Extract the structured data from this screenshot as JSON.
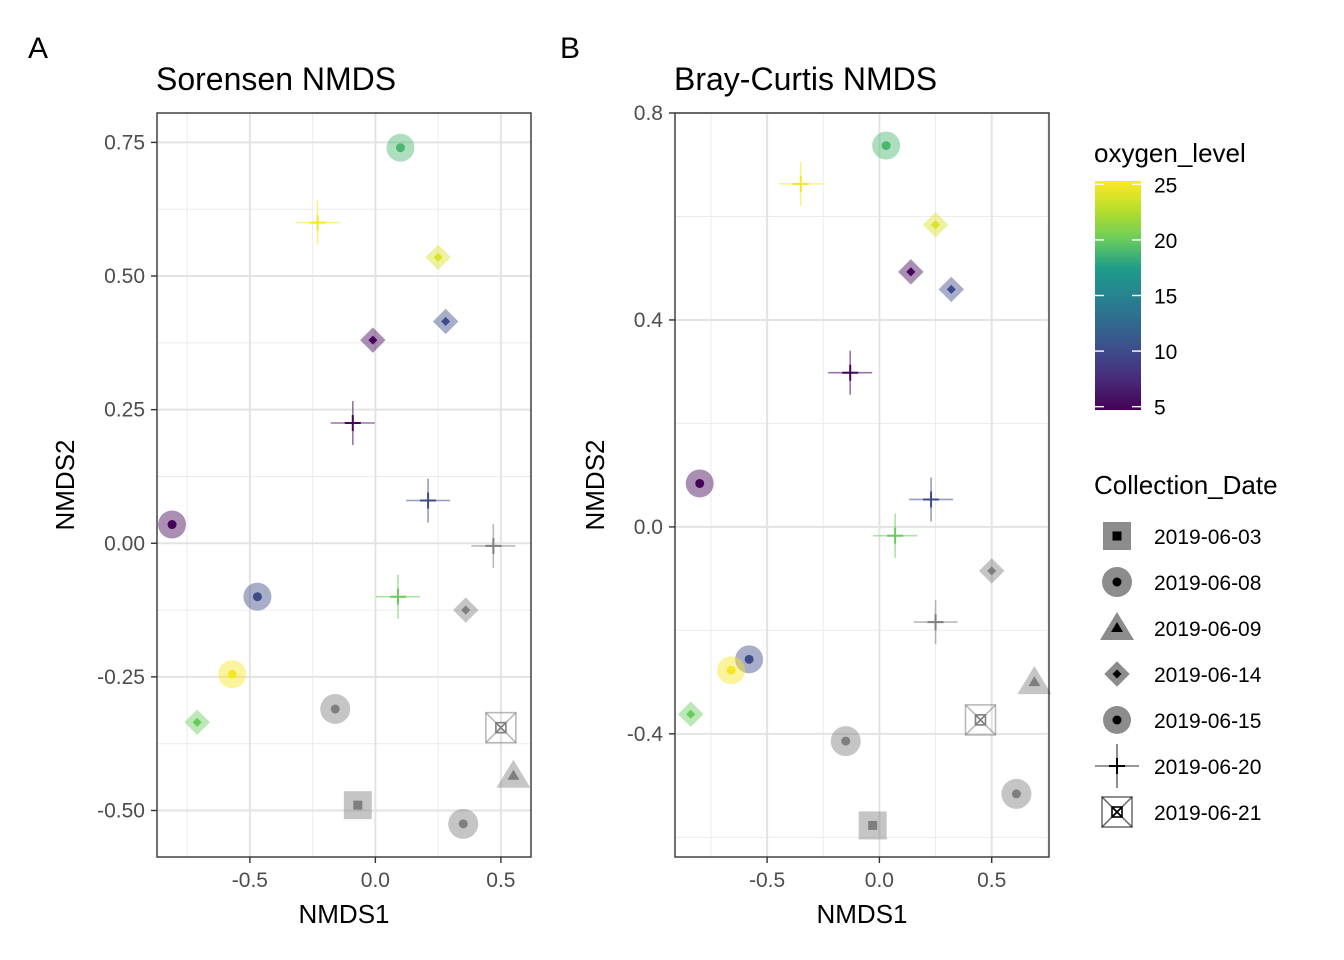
{
  "chart_data": [
    {
      "panel_tag": "A",
      "type": "scatter",
      "title": "Sorensen NMDS",
      "xlabel": "NMDS1",
      "ylabel": "NMDS2",
      "xlim": [
        -0.87,
        0.62
      ],
      "ylim": [
        -0.587,
        0.805
      ],
      "xticks": [
        -0.5,
        0.0,
        0.5
      ],
      "xtick_labels": [
        "-0.5",
        "0.0",
        "0.5"
      ],
      "yticks": [
        -0.5,
        -0.25,
        0.0,
        0.25,
        0.5,
        0.75
      ],
      "ytick_labels": [
        "-0.50",
        "-0.25",
        "0.00",
        "0.25",
        "0.50",
        "0.75"
      ],
      "grid": true,
      "points": [
        {
          "x": 0.1,
          "y": 0.74,
          "shape": "circle2",
          "oxygen": 19
        },
        {
          "x": -0.23,
          "y": 0.6,
          "shape": "plus",
          "oxygen": 25
        },
        {
          "x": 0.25,
          "y": 0.535,
          "shape": "diamond",
          "oxygen": 24
        },
        {
          "x": 0.28,
          "y": 0.415,
          "shape": "diamond",
          "oxygen": 10
        },
        {
          "x": -0.01,
          "y": 0.38,
          "shape": "diamond",
          "oxygen": 5
        },
        {
          "x": -0.09,
          "y": 0.225,
          "shape": "plus",
          "oxygen": 5
        },
        {
          "x": 0.21,
          "y": 0.08,
          "shape": "plus",
          "oxygen": 10
        },
        {
          "x": -0.81,
          "y": 0.035,
          "shape": "circle2",
          "oxygen": 5
        },
        {
          "x": 0.47,
          "y": -0.005,
          "shape": "plus",
          "oxygen": null
        },
        {
          "x": 0.09,
          "y": -0.1,
          "shape": "plus",
          "oxygen": 20
        },
        {
          "x": 0.36,
          "y": -0.125,
          "shape": "diamond",
          "oxygen": null
        },
        {
          "x": -0.47,
          "y": -0.1,
          "shape": "circle2",
          "oxygen": 10
        },
        {
          "x": -0.57,
          "y": -0.245,
          "shape": "circle2",
          "oxygen": 25
        },
        {
          "x": -0.71,
          "y": -0.335,
          "shape": "diamond",
          "oxygen": 20
        },
        {
          "x": -0.16,
          "y": -0.31,
          "shape": "circle",
          "oxygen": null
        },
        {
          "x": 0.5,
          "y": -0.345,
          "shape": "boxx",
          "oxygen": null
        },
        {
          "x": 0.55,
          "y": -0.435,
          "shape": "triangle",
          "oxygen": null
        },
        {
          "x": -0.07,
          "y": -0.49,
          "shape": "square",
          "oxygen": null
        },
        {
          "x": 0.35,
          "y": -0.525,
          "shape": "circle",
          "oxygen": null
        }
      ]
    },
    {
      "panel_tag": "B",
      "type": "scatter",
      "title": "Bray-Curtis NMDS",
      "xlabel": "NMDS1",
      "ylabel": "NMDS2",
      "xlim": [
        -0.91,
        0.755
      ],
      "ylim": [
        -0.638,
        0.8
      ],
      "xticks": [
        -0.5,
        0.0,
        0.5
      ],
      "xtick_labels": [
        "-0.5",
        "0.0",
        "0.5"
      ],
      "yticks": [
        -0.4,
        0.0,
        0.4,
        0.8
      ],
      "ytick_labels": [
        "-0.4",
        "0.0",
        "0.4",
        "0.8"
      ],
      "grid": true,
      "points": [
        {
          "x": 0.03,
          "y": 0.737,
          "shape": "circle2",
          "oxygen": 19
        },
        {
          "x": -0.35,
          "y": 0.663,
          "shape": "plus",
          "oxygen": 25
        },
        {
          "x": 0.25,
          "y": 0.584,
          "shape": "diamond",
          "oxygen": 24
        },
        {
          "x": 0.14,
          "y": 0.493,
          "shape": "diamond",
          "oxygen": 5
        },
        {
          "x": 0.32,
          "y": 0.459,
          "shape": "diamond",
          "oxygen": 10
        },
        {
          "x": -0.13,
          "y": 0.298,
          "shape": "plus",
          "oxygen": 5
        },
        {
          "x": -0.8,
          "y": 0.084,
          "shape": "circle2",
          "oxygen": 5
        },
        {
          "x": 0.23,
          "y": 0.053,
          "shape": "plus",
          "oxygen": 10
        },
        {
          "x": 0.07,
          "y": -0.017,
          "shape": "plus",
          "oxygen": 20
        },
        {
          "x": 0.5,
          "y": -0.085,
          "shape": "diamond",
          "oxygen": null
        },
        {
          "x": 0.25,
          "y": -0.184,
          "shape": "plus",
          "oxygen": null
        },
        {
          "x": -0.58,
          "y": -0.256,
          "shape": "circle2",
          "oxygen": 10
        },
        {
          "x": -0.66,
          "y": -0.277,
          "shape": "circle2",
          "oxygen": 25
        },
        {
          "x": 0.69,
          "y": -0.3,
          "shape": "triangle",
          "oxygen": null
        },
        {
          "x": -0.84,
          "y": -0.362,
          "shape": "diamond",
          "oxygen": 20
        },
        {
          "x": 0.45,
          "y": -0.373,
          "shape": "boxx",
          "oxygen": null
        },
        {
          "x": -0.15,
          "y": -0.414,
          "shape": "circle",
          "oxygen": null
        },
        {
          "x": 0.61,
          "y": -0.516,
          "shape": "circle",
          "oxygen": null
        },
        {
          "x": -0.03,
          "y": -0.577,
          "shape": "square",
          "oxygen": null
        }
      ]
    }
  ],
  "legend": {
    "oxygen_title": "oxygen_level",
    "oxygen_ticks": [
      5,
      10,
      15,
      20,
      25
    ],
    "oxygen_tick_labels": [
      "5",
      "10",
      "15",
      "20",
      "25"
    ],
    "oxygen_range": [
      4.7,
      25.3
    ],
    "missing_color": "#7f7f7f",
    "colormap": [
      "#440154",
      "#482777",
      "#3f4a8a",
      "#31678e",
      "#26838f",
      "#1f9d8a",
      "#6cce5a",
      "#b6de2b",
      "#fee825"
    ],
    "date_title": "Collection_Date",
    "dates": [
      {
        "label": "2019-06-03",
        "shape": "square"
      },
      {
        "label": "2019-06-08",
        "shape": "circle"
      },
      {
        "label": "2019-06-09",
        "shape": "triangle"
      },
      {
        "label": "2019-06-14",
        "shape": "diamond"
      },
      {
        "label": "2019-06-15",
        "shape": "circle2"
      },
      {
        "label": "2019-06-20",
        "shape": "plus"
      },
      {
        "label": "2019-06-21",
        "shape": "boxx"
      }
    ]
  }
}
